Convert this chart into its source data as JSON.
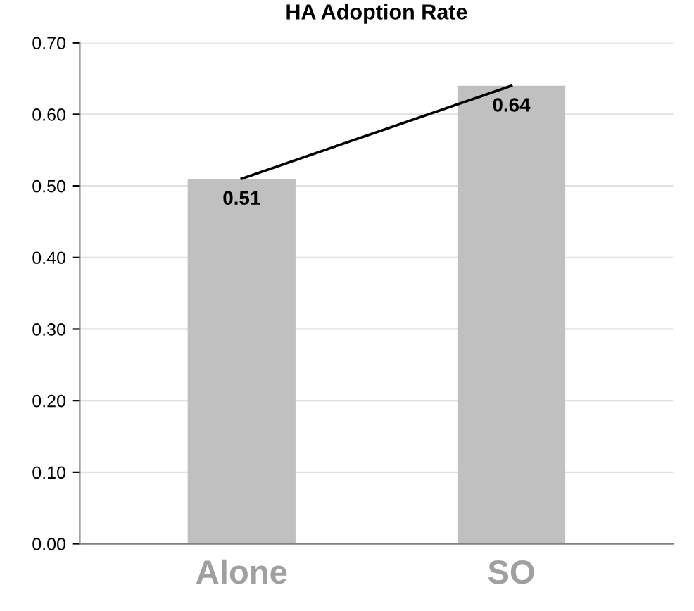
{
  "chart_data": {
    "type": "bar",
    "title": "HA Adoption Rate",
    "categories": [
      "Alone",
      "SO"
    ],
    "series": [
      {
        "color": "#c0c0c0",
        "values": [
          0.51,
          0.64
        ],
        "value_labels": [
          "0.51",
          "0.64"
        ]
      },
      {
        "type": "line",
        "color": "#000000",
        "values": [
          0.51,
          0.64
        ]
      }
    ],
    "ylim": [
      0,
      0.7
    ],
    "yticks": [
      {
        "value": 0,
        "label": "0.00"
      },
      {
        "value": 0.1,
        "label": "0.10"
      },
      {
        "value": 0.2,
        "label": "0.20"
      },
      {
        "value": 0.3,
        "label": "0.30"
      },
      {
        "value": 0.4,
        "label": "0.40"
      },
      {
        "value": 0.5,
        "label": "0.50"
      },
      {
        "value": 0.6,
        "label": "0.60"
      },
      {
        "value": 0.7,
        "label": "0.70"
      }
    ],
    "grid": "y",
    "marker": "none",
    "line_style": "solid"
  }
}
